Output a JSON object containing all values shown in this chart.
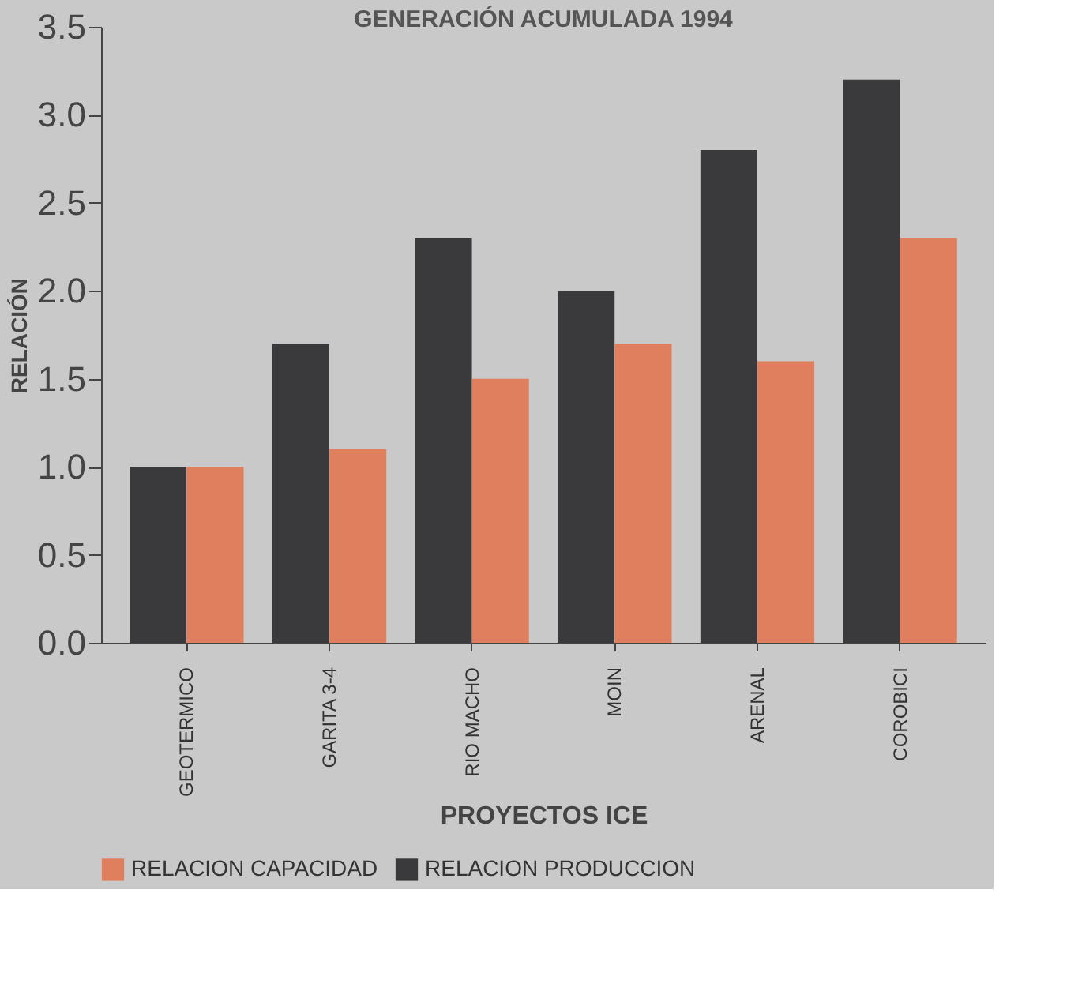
{
  "chart_data": {
    "type": "bar",
    "title": "GENERACIÓN ACUMULADA 1994",
    "xlabel": "PROYECTOS ICE",
    "ylabel": "RELACIÓN",
    "categories": [
      "GEOTERMICO",
      "GARITA 3-4",
      "RIO MACHO",
      "MOIN",
      "ARENAL",
      "COROBICI"
    ],
    "series": [
      {
        "name": "RELACION PRODUCCION",
        "color": "#3a3a3c",
        "values": [
          1.0,
          1.7,
          2.3,
          2.0,
          2.8,
          3.2
        ]
      },
      {
        "name": "RELACION CAPACIDAD",
        "color": "#e07f5e",
        "values": [
          1.0,
          1.1,
          1.5,
          1.7,
          1.6,
          2.3
        ]
      }
    ],
    "ylim": [
      0,
      3.5
    ],
    "yticks": [
      {
        "value": 0,
        "label": "0.0"
      },
      {
        "value": 0.5,
        "label": "0.5"
      },
      {
        "value": 1,
        "label": "1.0"
      },
      {
        "value": 1.5,
        "label": "1.5"
      },
      {
        "value": 2,
        "label": "2.0"
      },
      {
        "value": 2.5,
        "label": "2.5"
      },
      {
        "value": 3,
        "label": "3.0"
      },
      {
        "value": 3.5,
        "label": "3.5"
      }
    ],
    "grid": false,
    "legend": "bottom"
  }
}
